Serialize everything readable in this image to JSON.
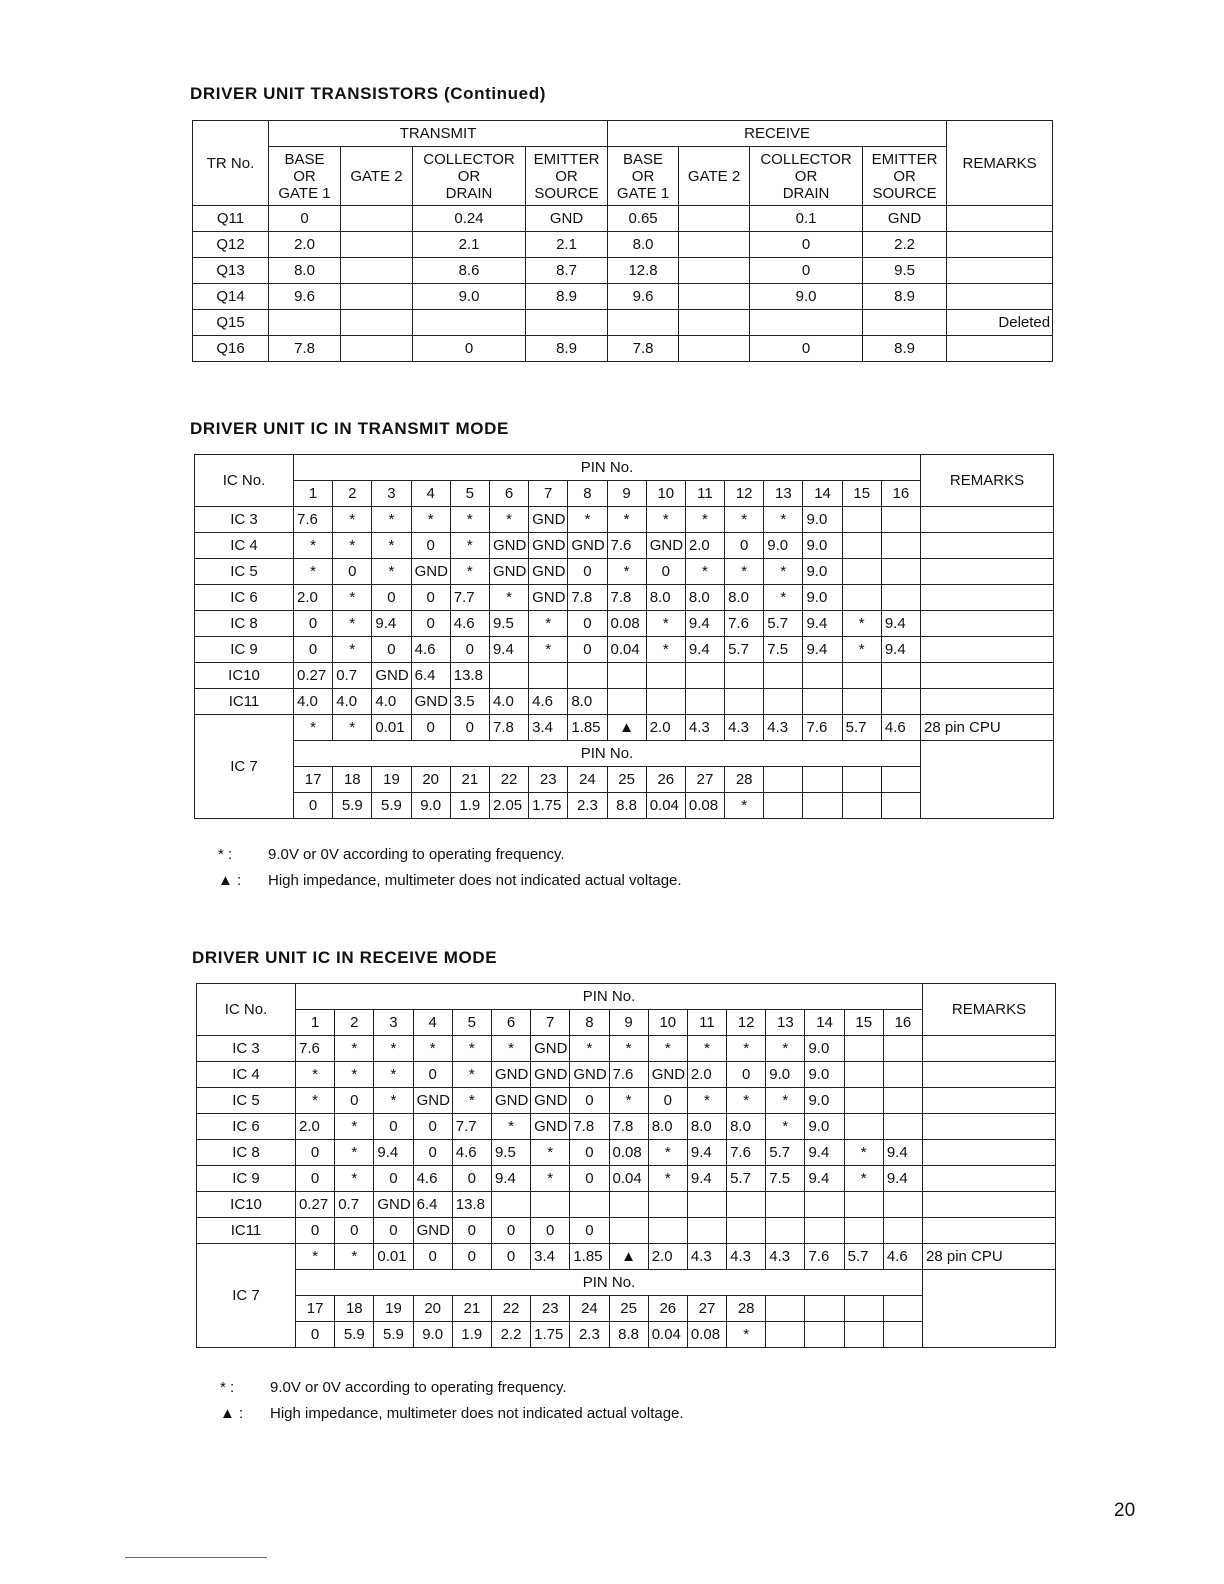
{
  "tr_table": {
    "title": "DRIVER UNIT TRANSISTORS (Continued)",
    "tr_no": "TR No.",
    "transmit": "TRANSMIT",
    "receive": "RECEIVE",
    "remarks": "REMARKS",
    "sub_headers": [
      "BASE\nOR\nGATE 1",
      "GATE 2",
      "COLLECTOR\nOR\nDRAIN",
      "EMITTER\nOR\nSOURCE",
      "BASE\nOR\nGATE 1",
      "GATE 2",
      "COLLECTOR\nOR\nDRAIN",
      "EMITTER\nOR\nSOURCE"
    ],
    "rows": [
      [
        "Q11",
        "0",
        "",
        "0.24",
        "GND",
        "0.65",
        "",
        "0.1",
        "GND",
        ""
      ],
      [
        "Q12",
        "2.0",
        "",
        "2.1",
        "2.1",
        "8.0",
        "",
        "0",
        "2.2",
        ""
      ],
      [
        "Q13",
        "8.0",
        "",
        "8.6",
        "8.7",
        "12.8",
        "",
        "0",
        "9.5",
        ""
      ],
      [
        "Q14",
        "9.6",
        "",
        "9.0",
        "8.9",
        "9.6",
        "",
        "9.0",
        "8.9",
        ""
      ],
      [
        "Q15",
        "",
        "",
        "",
        "",
        "",
        "",
        "",
        "",
        "Deleted"
      ],
      [
        "Q16",
        "7.8",
        "",
        "0",
        "8.9",
        "7.8",
        "",
        "0",
        "8.9",
        ""
      ]
    ]
  },
  "ic_transmit": {
    "title": "DRIVER UNIT IC IN TRANSMIT MODE",
    "ic_no": "IC No.",
    "pin_no": "PIN No.",
    "remarks": "REMARKS",
    "pins": [
      "1",
      "2",
      "3",
      "4",
      "5",
      "6",
      "7",
      "8",
      "9",
      "10",
      "11",
      "12",
      "13",
      "14",
      "15",
      "16"
    ],
    "rows": [
      [
        "IC 3",
        "7.6",
        "*",
        "*",
        "*",
        "*",
        "*",
        "GND",
        "*",
        "*",
        "*",
        "*",
        "*",
        "*",
        "9.0",
        "",
        ""
      ],
      [
        "IC 4",
        "*",
        "*",
        "*",
        "0",
        "*",
        "GND",
        "GND",
        "GND",
        "7.6",
        "GND",
        "2.0",
        "0",
        "9.0",
        "9.0",
        "",
        ""
      ],
      [
        "IC 5",
        "*",
        "0",
        "*",
        "GND",
        "*",
        "GND",
        "GND",
        "0",
        "*",
        "0",
        "*",
        "*",
        "*",
        "9.0",
        "",
        ""
      ],
      [
        "IC 6",
        "2.0",
        "*",
        "0",
        "0",
        "7.7",
        "*",
        "GND",
        "7.8",
        "7.8",
        "8.0",
        "8.0",
        "8.0",
        "*",
        "9.0",
        "",
        ""
      ],
      [
        "IC 8",
        "0",
        "*",
        "9.4",
        "0",
        "4.6",
        "9.5",
        "*",
        "0",
        "0.08",
        "*",
        "9.4",
        "7.6",
        "5.7",
        "9.4",
        "*",
        "9.4"
      ],
      [
        "IC 9",
        "0",
        "*",
        "0",
        "4.6",
        "0",
        "9.4",
        "*",
        "0",
        "0.04",
        "*",
        "9.4",
        "5.7",
        "7.5",
        "9.4",
        "*",
        "9.4"
      ],
      [
        "IC10",
        "0.27",
        "0.7",
        "GND",
        "6.4",
        "13.8",
        "",
        "",
        "",
        "",
        "",
        "",
        "",
        "",
        "",
        "",
        ""
      ],
      [
        "IC11",
        "4.0",
        "4.0",
        "4.0",
        "GND",
        "3.5",
        "4.0",
        "4.6",
        "8.0",
        "",
        "",
        "",
        "",
        "",
        "",
        "",
        ""
      ]
    ],
    "ic7": {
      "label": "IC 7",
      "values_1_16": [
        "*",
        "*",
        "0.01",
        "0",
        "0",
        "7.8",
        "3.4",
        "1.85",
        "▲",
        "2.0",
        "4.3",
        "4.3",
        "4.3",
        "7.6",
        "5.7",
        "4.6"
      ],
      "remark": "28 pin CPU",
      "pin_no": "PIN No.",
      "pins_17_28": [
        "17",
        "18",
        "19",
        "20",
        "21",
        "22",
        "23",
        "24",
        "25",
        "26",
        "27",
        "28",
        "",
        "",
        "",
        ""
      ],
      "values_17_28": [
        "0",
        "5.9",
        "5.9",
        "9.0",
        "1.9",
        "2.05",
        "1.75",
        "2.3",
        "8.8",
        "0.04",
        "0.08",
        "*",
        "",
        "",
        "",
        ""
      ]
    },
    "notes": [
      {
        "symbol": "*  :",
        "text": "9.0V or 0V according to operating frequency."
      },
      {
        "symbol": "▲  :",
        "text": "High impedance, multimeter does not indicated actual voltage."
      }
    ]
  },
  "ic_receive": {
    "title": "DRIVER UNIT IC IN RECEIVE MODE",
    "ic_no": "IC No.",
    "pin_no": "PIN No.",
    "remarks": "REMARKS",
    "pins": [
      "1",
      "2",
      "3",
      "4",
      "5",
      "6",
      "7",
      "8",
      "9",
      "10",
      "11",
      "12",
      "13",
      "14",
      "15",
      "16"
    ],
    "rows": [
      [
        "IC 3",
        "7.6",
        "*",
        "*",
        "*",
        "*",
        "*",
        "GND",
        "*",
        "*",
        "*",
        "*",
        "*",
        "*",
        "9.0",
        "",
        ""
      ],
      [
        "IC 4",
        "*",
        "*",
        "*",
        "0",
        "*",
        "GND",
        "GND",
        "GND",
        "7.6",
        "GND",
        "2.0",
        "0",
        "9.0",
        "9.0",
        "",
        ""
      ],
      [
        "IC 5",
        "*",
        "0",
        "*",
        "GND",
        "*",
        "GND",
        "GND",
        "0",
        "*",
        "0",
        "*",
        "*",
        "*",
        "9.0",
        "",
        ""
      ],
      [
        "IC 6",
        "2.0",
        "*",
        "0",
        "0",
        "7.7",
        "*",
        "GND",
        "7.8",
        "7.8",
        "8.0",
        "8.0",
        "8.0",
        "*",
        "9.0",
        "",
        ""
      ],
      [
        "IC 8",
        "0",
        "*",
        "9.4",
        "0",
        "4.6",
        "9.5",
        "*",
        "0",
        "0.08",
        "*",
        "9.4",
        "7.6",
        "5.7",
        "9.4",
        "*",
        "9.4"
      ],
      [
        "IC 9",
        "0",
        "*",
        "0",
        "4.6",
        "0",
        "9.4",
        "*",
        "0",
        "0.04",
        "*",
        "9.4",
        "5.7",
        "7.5",
        "9.4",
        "*",
        "9.4"
      ],
      [
        "IC10",
        "0.27",
        "0.7",
        "GND",
        "6.4",
        "13.8",
        "",
        "",
        "",
        "",
        "",
        "",
        "",
        "",
        "",
        "",
        ""
      ],
      [
        "IC11",
        "0",
        "0",
        "0",
        "GND",
        "0",
        "0",
        "0",
        "0",
        "",
        "",
        "",
        "",
        "",
        "",
        "",
        ""
      ]
    ],
    "ic7": {
      "label": "IC 7",
      "values_1_16": [
        "*",
        "*",
        "0.01",
        "0",
        "0",
        "0",
        "3.4",
        "1.85",
        "▲",
        "2.0",
        "4.3",
        "4.3",
        "4.3",
        "7.6",
        "5.7",
        "4.6"
      ],
      "remark": "28 pin CPU",
      "pin_no": "PIN No.",
      "pins_17_28": [
        "17",
        "18",
        "19",
        "20",
        "21",
        "22",
        "23",
        "24",
        "25",
        "26",
        "27",
        "28",
        "",
        "",
        "",
        ""
      ],
      "values_17_28": [
        "0",
        "5.9",
        "5.9",
        "9.0",
        "1.9",
        "2.2",
        "1.75",
        "2.3",
        "8.8",
        "0.04",
        "0.08",
        "*",
        "",
        "",
        "",
        ""
      ]
    },
    "notes": [
      {
        "symbol": "*  :",
        "text": "9.0V or 0V according to operating frequency."
      },
      {
        "symbol": "▲  :",
        "text": "High impedance, multimeter does not indicated actual voltage."
      }
    ]
  },
  "page_number": "20"
}
